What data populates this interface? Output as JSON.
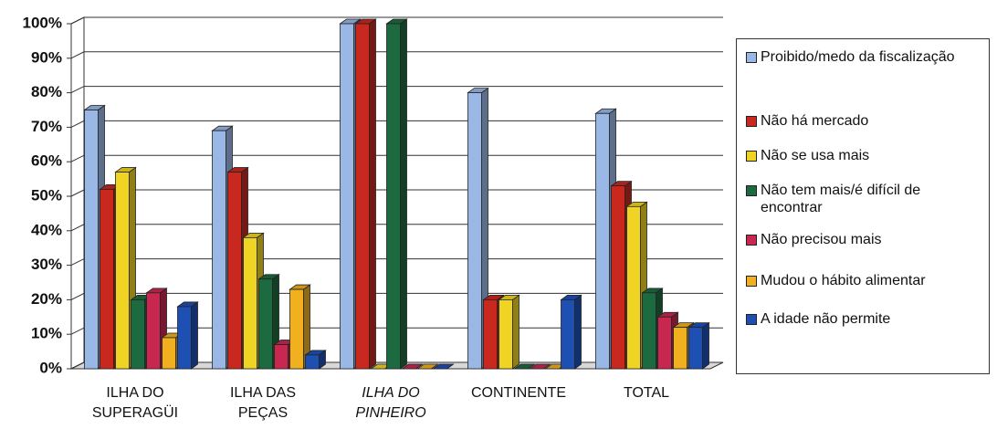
{
  "chart_data": {
    "type": "bar",
    "categories": [
      "ILHA DO SUPERAGÜI",
      "ILHA DAS PEÇAS",
      "ILHA DO PINHEIRO",
      "CONTINENTE",
      "TOTAL"
    ],
    "series": [
      {
        "name": "Proibido/medo da fiscalização",
        "color": "#9ab8e6",
        "values": [
          75,
          69,
          100,
          80,
          74
        ]
      },
      {
        "name": "Não há mercado",
        "color": "#c8281e",
        "values": [
          52,
          57,
          100,
          20,
          53
        ]
      },
      {
        "name": "Não se usa mais",
        "color": "#f0d424",
        "values": [
          57,
          38,
          0,
          20,
          47
        ]
      },
      {
        "name": "Não tem mais/é difícil de encontrar",
        "color": "#1e6a40",
        "values": [
          20,
          26,
          100,
          0,
          22
        ]
      },
      {
        "name": "Não precisou mais",
        "color": "#c82850",
        "values": [
          22,
          7,
          0,
          0,
          15
        ]
      },
      {
        "name": "Mudou o hábito alimentar",
        "color": "#f0b020",
        "values": [
          9,
          23,
          0,
          0,
          12
        ]
      },
      {
        "name": "A idade não permite",
        "color": "#1e50b4",
        "values": [
          18,
          4,
          0,
          20,
          12
        ]
      }
    ],
    "ylim": [
      0,
      100
    ],
    "yticks": [
      {
        "value": 0,
        "label": "0%"
      },
      {
        "value": 10,
        "label": "10%"
      },
      {
        "value": 20,
        "label": "20%"
      },
      {
        "value": 30,
        "label": "30%"
      },
      {
        "value": 40,
        "label": "40%"
      },
      {
        "value": 50,
        "label": "50%"
      },
      {
        "value": 60,
        "label": "60%"
      },
      {
        "value": 70,
        "label": "70%"
      },
      {
        "value": 80,
        "label": "80%"
      },
      {
        "value": 90,
        "label": "90%"
      },
      {
        "value": 100,
        "label": "100%"
      }
    ],
    "grid": true
  }
}
